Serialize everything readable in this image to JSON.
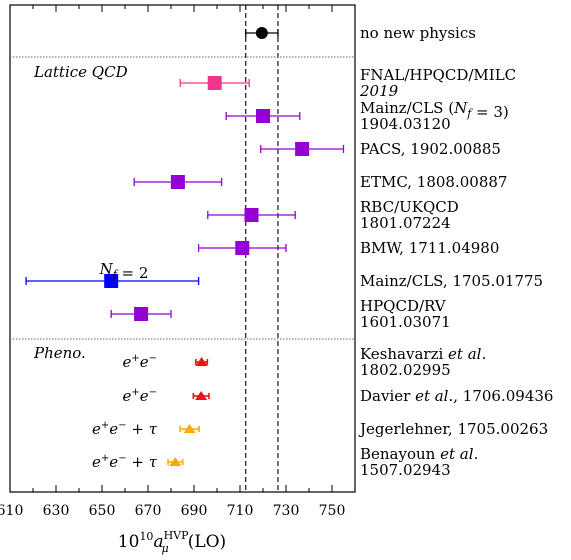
{
  "chart_data": {
    "type": "scatter",
    "xlabel": "10¹⁰a_μ^HVP(LO)",
    "xlim": [
      610,
      760
    ],
    "xticks": [
      610,
      630,
      650,
      670,
      690,
      710,
      730,
      750
    ],
    "reference_band": {
      "min": 712.5,
      "max": 726.5,
      "style": "dashed"
    },
    "sections": [
      {
        "label": "",
        "key": "ref"
      },
      {
        "label": "Lattice QCD",
        "key": "lattice"
      },
      {
        "label": "Pheno.",
        "key": "pheno"
      }
    ],
    "points": [
      {
        "section": "ref",
        "label": [
          "no new physics"
        ],
        "value": 719.5,
        "err_lo": 7.0,
        "err_hi": 7.0,
        "marker": "circle",
        "color": "#000000"
      },
      {
        "section": "lattice",
        "label": [
          "FNAL/HPQCD/MILC",
          "2019"
        ],
        "value": 699.0,
        "err_lo": 15.0,
        "err_hi": 15.0,
        "marker": "square",
        "color": "#f0368c"
      },
      {
        "section": "lattice",
        "label": [
          "Mainz/CLS (N_f = 3)",
          "1904.03120"
        ],
        "value": 720.0,
        "err_lo": 16.0,
        "err_hi": 16.0,
        "marker": "square",
        "color": "#9400d3"
      },
      {
        "section": "lattice",
        "label": [
          "PACS, 1902.00885"
        ],
        "value": 737.0,
        "err_lo": 18.0,
        "err_hi": 18.0,
        "marker": "square",
        "color": "#9400d3"
      },
      {
        "section": "lattice",
        "label": [
          "ETMC, 1808.00887"
        ],
        "value": 683.0,
        "err_lo": 19.0,
        "err_hi": 19.0,
        "marker": "square",
        "color": "#9400d3"
      },
      {
        "section": "lattice",
        "label": [
          "RBC/UKQCD",
          "1801.07224"
        ],
        "value": 715.0,
        "err_lo": 19.0,
        "err_hi": 19.0,
        "marker": "square",
        "color": "#9400d3"
      },
      {
        "section": "lattice",
        "label": [
          "BMW, 1711.04980"
        ],
        "value": 711.0,
        "err_lo": 19.0,
        "err_hi": 19.0,
        "marker": "square",
        "color": "#9400d3"
      },
      {
        "section": "lattice",
        "label": [
          "Mainz/CLS, 1705.01775"
        ],
        "value": 654.0,
        "err_lo": 37.0,
        "err_hi": 38.0,
        "marker": "square",
        "color": "#0000ff",
        "annotation": "N_f = 2"
      },
      {
        "section": "lattice",
        "label": [
          "HPQCD/RV",
          "1601.03071"
        ],
        "value": 667.0,
        "err_lo": 13.0,
        "err_hi": 13.0,
        "marker": "square",
        "color": "#9400d3"
      },
      {
        "section": "pheno",
        "label": [
          "Keshavarzi et al.",
          "1802.02995"
        ],
        "value": 693.3,
        "err_lo": 2.5,
        "err_hi": 2.5,
        "marker": "triangle",
        "color": "#ee1111",
        "method": "e+e−"
      },
      {
        "section": "pheno",
        "label": [
          "Davier et al., 1706.09436"
        ],
        "value": 693.1,
        "err_lo": 3.4,
        "err_hi": 3.4,
        "marker": "triangle",
        "color": "#ee1111",
        "method": "e+e−"
      },
      {
        "section": "pheno",
        "label": [
          "Jegerlehner, 1705.00263"
        ],
        "value": 688.1,
        "err_lo": 4.1,
        "err_hi": 4.1,
        "marker": "triangle",
        "color": "#ffaa00",
        "method": "e+e− + τ"
      },
      {
        "section": "pheno",
        "label": [
          "Benayoun et al.",
          "1507.02943"
        ],
        "value": 681.9,
        "err_lo": 3.2,
        "err_hi": 3.2,
        "marker": "triangle",
        "color": "#ffaa00",
        "method": "e+e− + τ"
      }
    ]
  }
}
